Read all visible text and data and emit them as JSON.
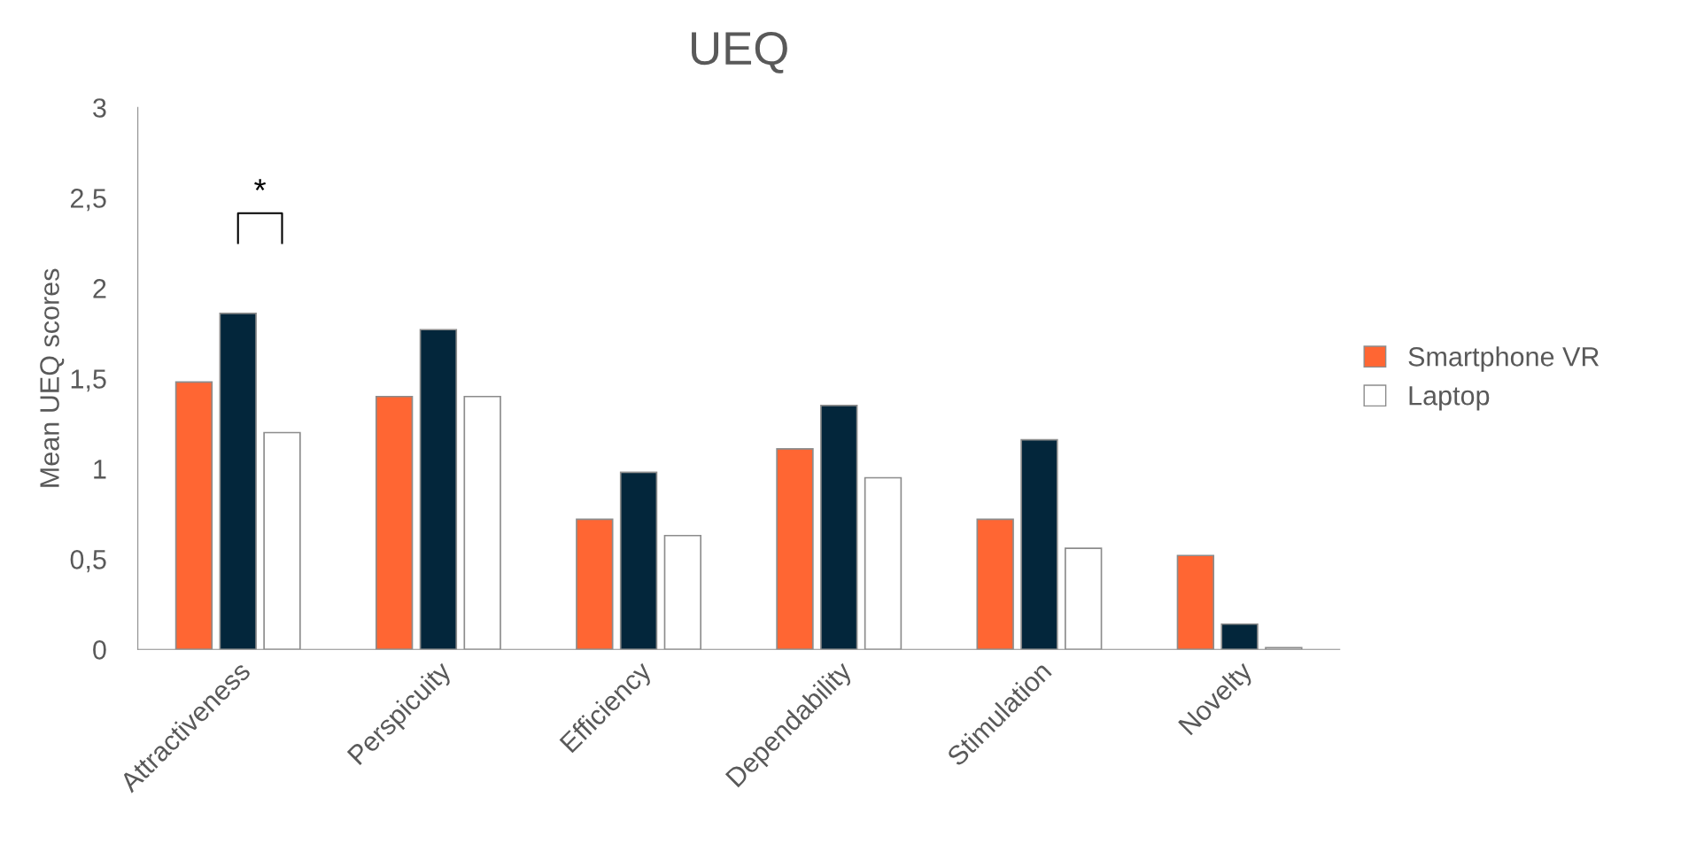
{
  "chart_data": {
    "type": "bar",
    "title": "UEQ",
    "ylabel": "Mean UEQ scores",
    "categories": [
      "Attractiveness",
      "Perspicuity",
      "Efficiency",
      "Dependability",
      "Stimulation",
      "Novelty"
    ],
    "series": [
      {
        "name": "Smartphone VR",
        "color": "#ff6633",
        "values": [
          1.48,
          1.4,
          0.72,
          1.11,
          0.72,
          0.52
        ]
      },
      {
        "color": "#03263b",
        "values": [
          1.86,
          1.77,
          0.98,
          1.35,
          1.16,
          0.14
        ]
      },
      {
        "name": "Laptop",
        "color": "#ffffff",
        "values": [
          1.2,
          1.4,
          0.63,
          0.95,
          0.56,
          0.01
        ]
      }
    ],
    "ylim": [
      0,
      3
    ],
    "yticks": [
      0,
      {
        "value": 0.5,
        "label": "0,5"
      },
      1,
      {
        "value": 1.5,
        "label": "1,5"
      },
      2,
      {
        "value": 2.5,
        "label": "2,5"
      },
      3
    ],
    "annotations": [
      "*"
    ],
    "grid": false,
    "legend": "right"
  }
}
